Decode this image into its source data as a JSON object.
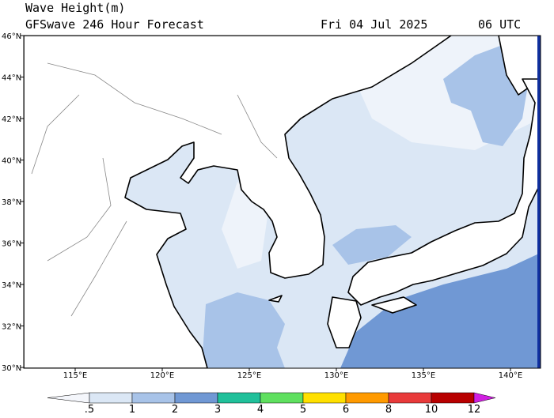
{
  "header": {
    "title": "Wave Height(m)",
    "subtitle": "GFSwave 246 Hour Forecast",
    "date": "Fri 04 Jul 2025",
    "time": "06 UTC"
  },
  "axes": {
    "lon_labels": [
      "115°E",
      "120°E",
      "125°E",
      "130°E",
      "135°E",
      "140°E"
    ],
    "lat_labels": [
      "30°N",
      "32°N",
      "34°N",
      "36°N",
      "38°N",
      "40°N",
      "42°N",
      "44°N",
      "46°N"
    ]
  },
  "colorbar": {
    "labels": [
      ".5",
      "1",
      "2",
      "3",
      "4",
      "5",
      "6",
      "8",
      "10",
      "12"
    ],
    "colors": [
      "#f4f6fb",
      "#dbe7f5",
      "#a8c3e8",
      "#7098d4",
      "#20c09a",
      "#5fe05f",
      "#ffe000",
      "#ff9a00",
      "#e83a3a",
      "#b80000",
      "#d020e0"
    ]
  }
}
